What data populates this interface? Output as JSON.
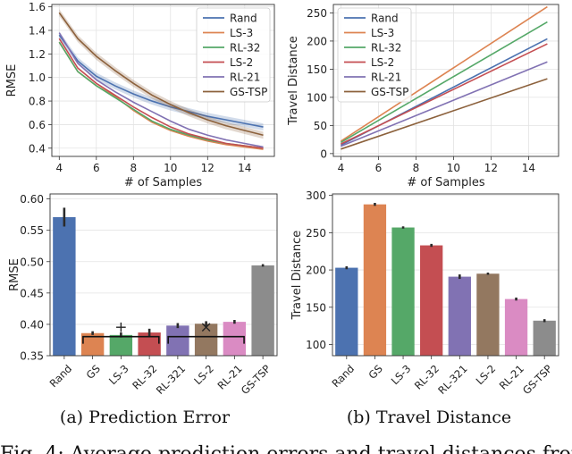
{
  "captions": {
    "a": "(a) Prediction Error",
    "b": "(b) Travel Distance",
    "figure": "Fig. 4: Average prediction errors and travel distances from"
  },
  "chart_data": [
    {
      "id": "rmse_line",
      "type": "line",
      "xlabel": "# of Samples",
      "ylabel": "RMSE",
      "xlim": [
        3.6,
        15.6
      ],
      "ylim": [
        0.33,
        1.62
      ],
      "xticks": [
        4,
        6,
        8,
        10,
        12,
        14
      ],
      "yticks": [
        0.4,
        0.6,
        0.8,
        1.0,
        1.2,
        1.4,
        1.6
      ],
      "ytick_labels": [
        "0.4",
        "0.6",
        "0.8",
        "1.0",
        "1.2",
        "1.4",
        "1.6"
      ],
      "grid": true,
      "legend": "top-right",
      "x": [
        4,
        5,
        6,
        7,
        8,
        9,
        10,
        11,
        12,
        13,
        14,
        15
      ],
      "series": [
        {
          "name": "Rand",
          "color": "#4c72b0",
          "values": [
            1.36,
            1.14,
            1.01,
            0.93,
            0.86,
            0.8,
            0.75,
            0.71,
            0.67,
            0.64,
            0.61,
            0.58
          ],
          "band": 0.03
        },
        {
          "name": "LS-3",
          "color": "#dd8452",
          "values": [
            1.3,
            1.05,
            0.93,
            0.84,
            0.72,
            0.62,
            0.55,
            0.5,
            0.46,
            0.43,
            0.41,
            0.39
          ],
          "band": 0
        },
        {
          "name": "RL-32",
          "color": "#55a868",
          "values": [
            1.3,
            1.05,
            0.93,
            0.83,
            0.73,
            0.63,
            0.56,
            0.51,
            0.47,
            0.44,
            0.42,
            0.4
          ],
          "band": 0
        },
        {
          "name": "LS-2",
          "color": "#c44e52",
          "values": [
            1.33,
            1.08,
            0.95,
            0.85,
            0.75,
            0.66,
            0.58,
            0.52,
            0.48,
            0.44,
            0.42,
            0.4
          ],
          "band": 0
        },
        {
          "name": "RL-21",
          "color": "#8172b3",
          "values": [
            1.38,
            1.12,
            0.98,
            0.88,
            0.79,
            0.71,
            0.63,
            0.56,
            0.51,
            0.47,
            0.44,
            0.41
          ],
          "band": 0
        },
        {
          "name": "GS-TSP",
          "color": "#8c613c",
          "values": [
            1.55,
            1.33,
            1.18,
            1.06,
            0.95,
            0.85,
            0.77,
            0.7,
            0.64,
            0.59,
            0.55,
            0.51
          ],
          "band": 0.03
        }
      ]
    },
    {
      "id": "travel_line",
      "type": "line",
      "xlabel": "# of Samples",
      "ylabel": "Travel Distance",
      "xlim": [
        3.6,
        15.6
      ],
      "ylim": [
        -5,
        265
      ],
      "xticks": [
        4,
        6,
        8,
        10,
        12,
        14
      ],
      "yticks": [
        0,
        50,
        100,
        150,
        200,
        250
      ],
      "ytick_labels": [
        "0",
        "50",
        "100",
        "150",
        "200",
        "250"
      ],
      "grid": true,
      "legend": "top-left",
      "x": [
        4,
        15
      ],
      "series": [
        {
          "name": "Rand",
          "color": "#4c72b0",
          "values": [
            15,
            204
          ]
        },
        {
          "name": "LS-3",
          "color": "#dd8452",
          "values": [
            22,
            261
          ]
        },
        {
          "name": "RL-32",
          "color": "#55a868",
          "values": [
            20,
            234
          ]
        },
        {
          "name": "LS-2",
          "color": "#c44e52",
          "values": [
            17,
            195
          ]
        },
        {
          "name": "RL-21",
          "color": "#8172b3",
          "values": [
            13,
            163
          ]
        },
        {
          "name": "GS-TSP",
          "color": "#8c613c",
          "values": [
            8,
            133
          ]
        }
      ]
    },
    {
      "id": "rmse_bar",
      "type": "bar",
      "ylabel": "RMSE",
      "ylim": [
        0.35,
        0.608
      ],
      "yticks": [
        0.35,
        0.4,
        0.45,
        0.5,
        0.55,
        0.6
      ],
      "ytick_labels": [
        "0.35",
        "0.40",
        "0.45",
        "0.50",
        "0.55",
        "0.60"
      ],
      "grid": true,
      "categories": [
        "Rand",
        "GS",
        "LS-3",
        "RL-32",
        "RL-321",
        "LS-2",
        "RL-21",
        "GS-TSP"
      ],
      "colors": [
        "#4c72b0",
        "#dd8452",
        "#55a868",
        "#c44e52",
        "#8172b3",
        "#937860",
        "#da8bc3",
        "#8c8c8c"
      ],
      "values": [
        0.571,
        0.386,
        0.383,
        0.387,
        0.398,
        0.401,
        0.404,
        0.494
      ],
      "errors": [
        0.015,
        0.003,
        0.004,
        0.006,
        0.004,
        0.004,
        0.003,
        0.002
      ],
      "annotations": [
        {
          "text": "+",
          "from": 1,
          "to": 3,
          "y": 0.379
        },
        {
          "text": "×",
          "from": 4,
          "to": 6,
          "y": 0.379
        }
      ]
    },
    {
      "id": "travel_bar",
      "type": "bar",
      "ylabel": "Travel Distance",
      "ylim": [
        85,
        302
      ],
      "yticks": [
        100,
        150,
        200,
        250,
        300
      ],
      "ytick_labels": [
        "100",
        "150",
        "200",
        "250",
        "300"
      ],
      "grid": true,
      "categories": [
        "Rand",
        "GS",
        "LS-3",
        "RL-32",
        "RL-321",
        "LS-2",
        "RL-21",
        "GS-TSP"
      ],
      "colors": [
        "#4c72b0",
        "#dd8452",
        "#55a868",
        "#c44e52",
        "#8172b3",
        "#937860",
        "#da8bc3",
        "#8c8c8c"
      ],
      "values": [
        203,
        288,
        257,
        233,
        191,
        195,
        161,
        132
      ],
      "errors": [
        2,
        2,
        1.5,
        2,
        3,
        1.5,
        2,
        2
      ]
    }
  ]
}
